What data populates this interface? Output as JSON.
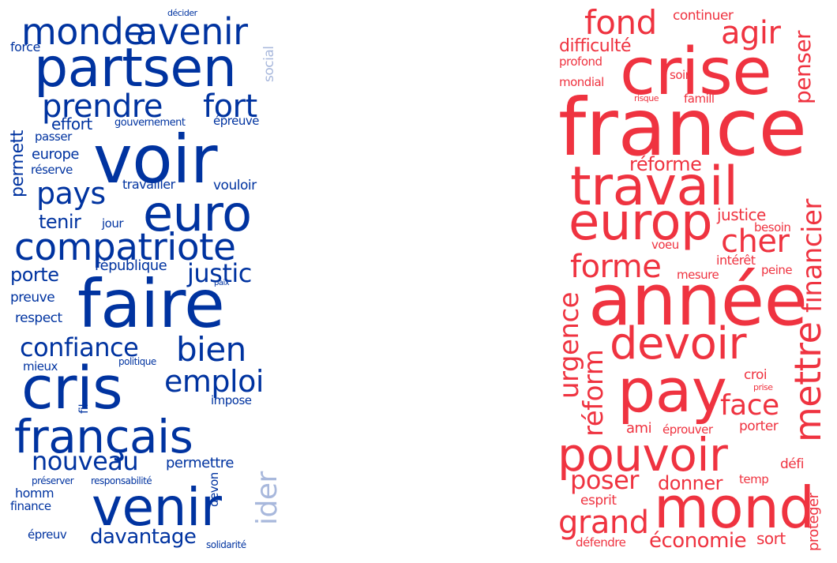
{
  "colors": {
    "left": "#0033a0",
    "left_light": "#a8b8dc",
    "right": "#ef3340",
    "background": "#ffffff"
  },
  "left_cloud": {
    "words": [
      "voir",
      "faire",
      "partsen",
      "cris",
      "venir",
      "euro",
      "français",
      "compatriote",
      "avenir",
      "monde",
      "prendre",
      "fort",
      "pays",
      "bien",
      "emploi",
      "confiance",
      "justic",
      "nouveau",
      "ider",
      "davantage",
      "permett",
      "tenir",
      "porte",
      "décider",
      "force",
      "social",
      "effort",
      "gouvernement",
      "épreuve",
      "passer",
      "europe",
      "réserve",
      "travailler",
      "vouloir",
      "jour",
      "république",
      "preuve",
      "paix",
      "respect",
      "mieux",
      "politique",
      "fil",
      "impose",
      "permettre",
      "préserver",
      "responsabilité",
      "homm",
      "devon",
      "finance",
      "épreuv",
      "solidarité"
    ]
  },
  "right_cloud": {
    "words": [
      "france",
      "crise",
      "année",
      "travail",
      "europ",
      "pay",
      "mond",
      "pouvoir",
      "devoir",
      "fond",
      "agir",
      "continuer",
      "difficulté",
      "profond",
      "mondial",
      "soir",
      "risque",
      "famill",
      "penser",
      "réforme",
      "financier",
      "justice",
      "besoin",
      "cher",
      "forme",
      "voeu",
      "intérêt",
      "mesure",
      "peine",
      "mettre",
      "urgence",
      "réform",
      "face",
      "croi",
      "prise",
      "ami",
      "éprouver",
      "porter",
      "poser",
      "donner",
      "défi",
      "temp",
      "protéger",
      "grand",
      "esprit",
      "défendre",
      "économie",
      "sort"
    ]
  }
}
